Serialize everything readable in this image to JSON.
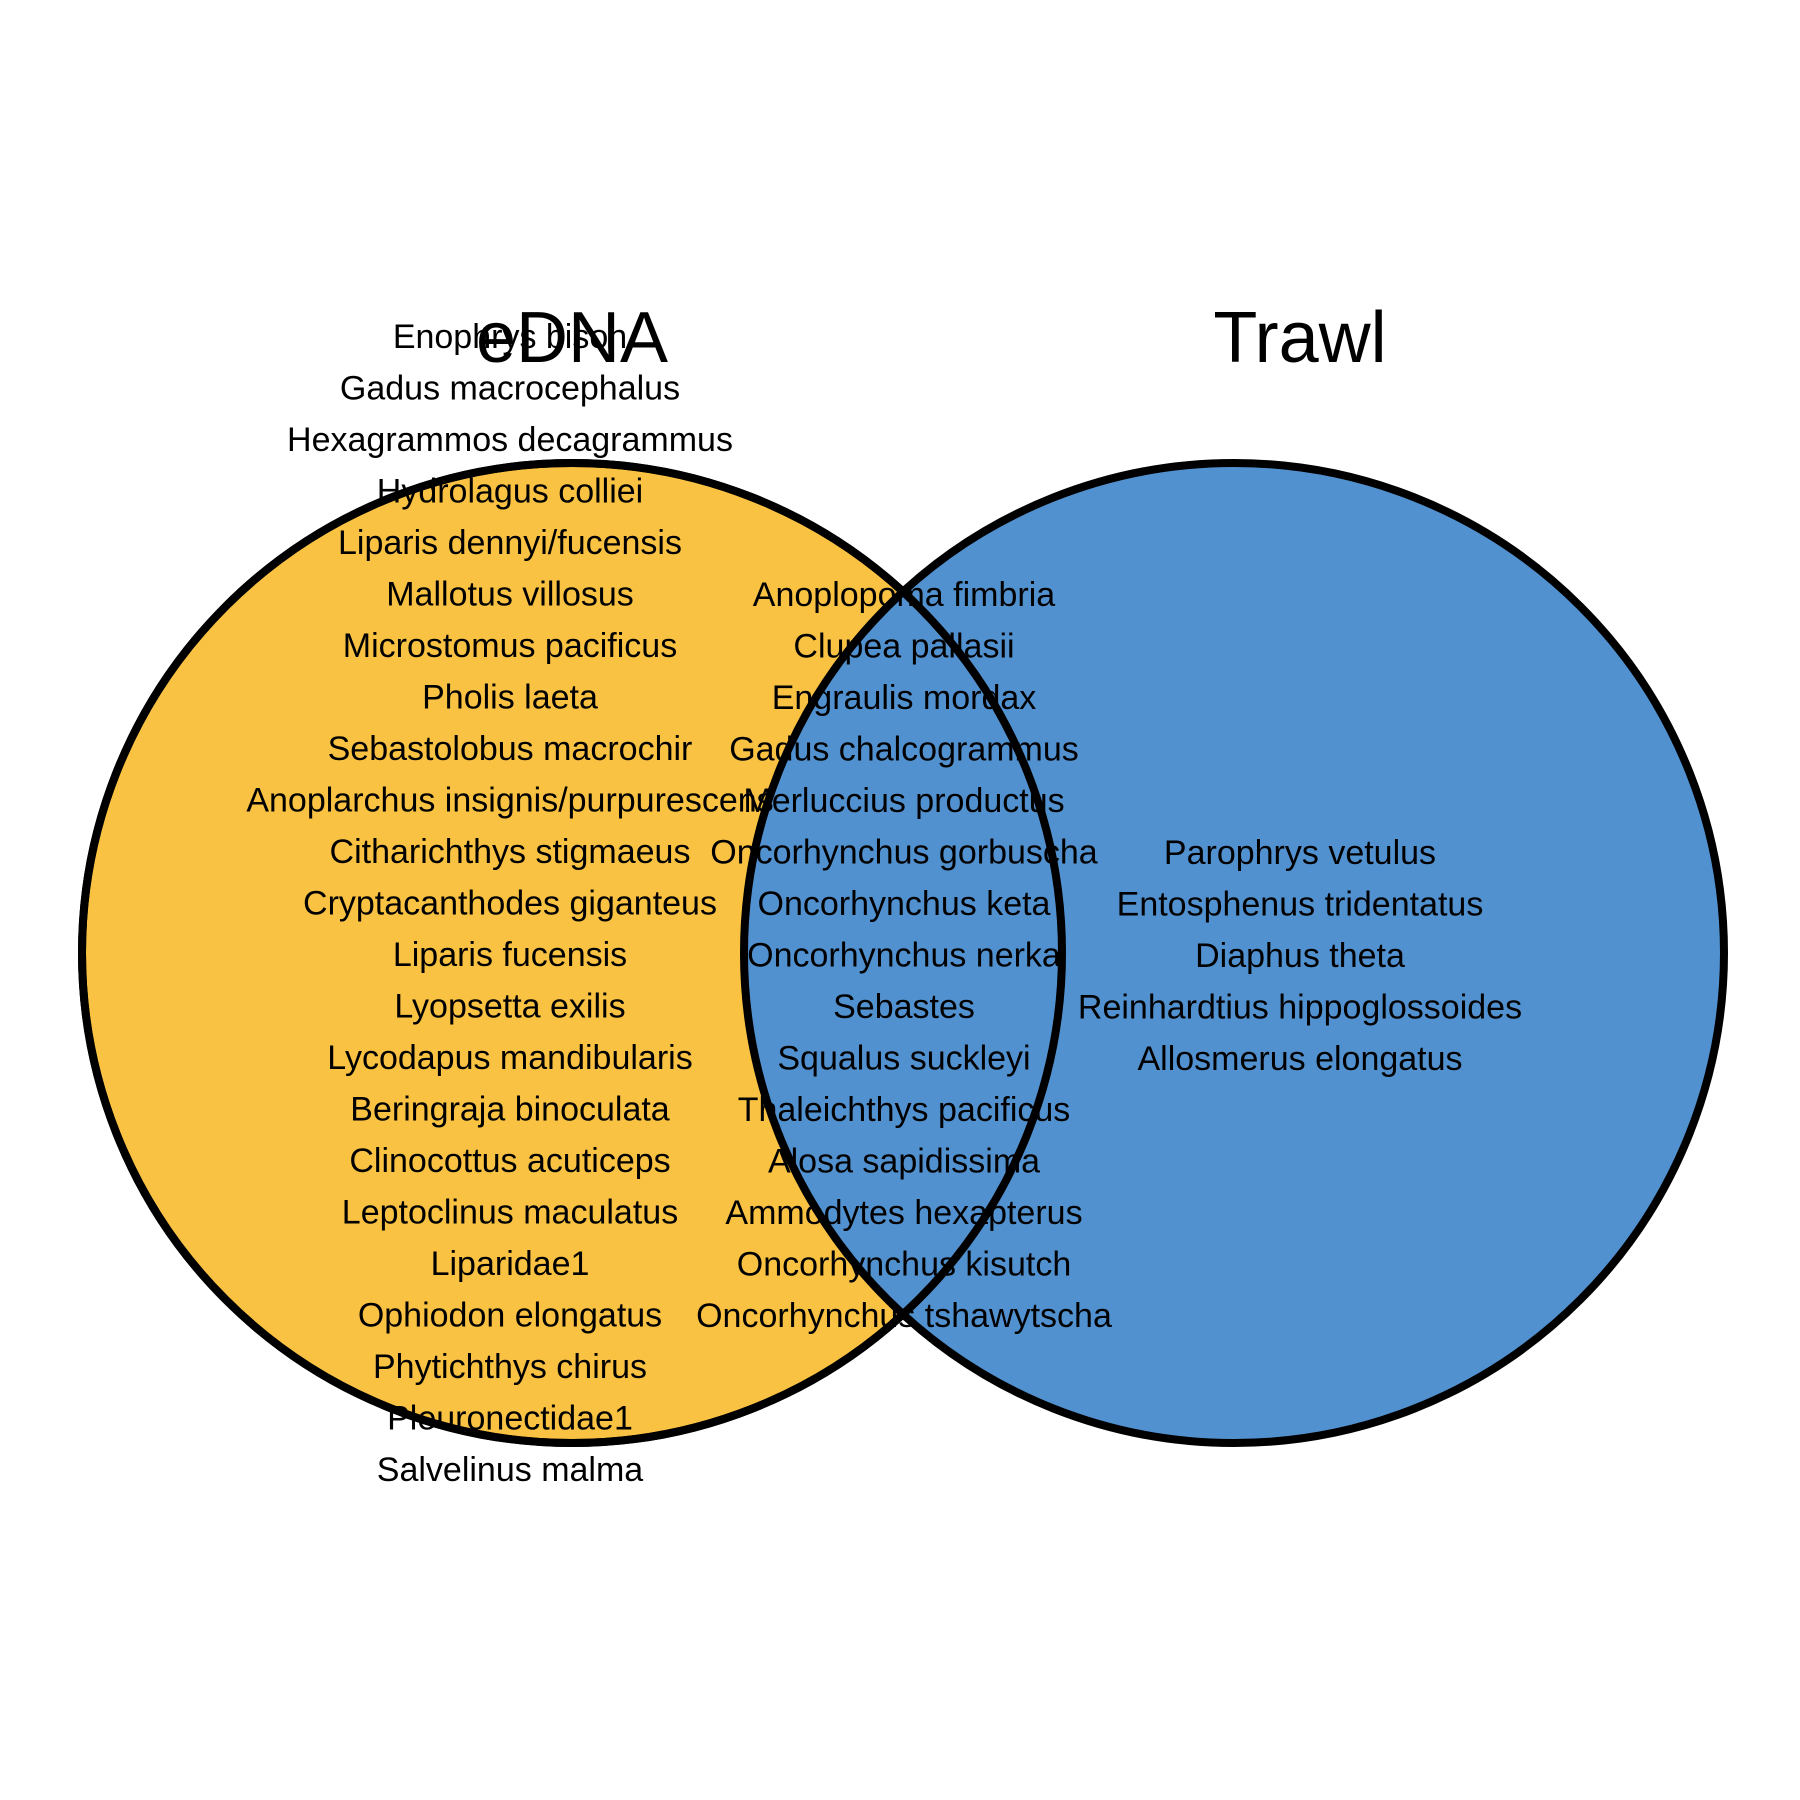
{
  "sets": {
    "left": {
      "title": "eDNA",
      "color": "#F9C242",
      "species": [
        "Enophrys bison",
        "Gadus macrocephalus",
        "Hexagrammos decagrammus",
        "Hydrolagus colliei",
        "Liparis dennyi/fucensis",
        "Mallotus villosus",
        "Microstomus pacificus",
        "Pholis laeta",
        "Sebastolobus macrochir",
        "Anoplarchus insignis/purpurescens",
        "Citharichthys stigmaeus",
        "Cryptacanthodes giganteus",
        "Liparis fucensis",
        "Lyopsetta exilis",
        "Lycodapus mandibularis",
        "Beringraja binoculata",
        "Clinocottus acuticeps",
        "Leptoclinus maculatus",
        "Liparidae1",
        "Ophiodon elongatus",
        "Phytichthys chirus",
        "Pleuronectidae1",
        "Salvelinus malma"
      ]
    },
    "right": {
      "title": "Trawl",
      "color": "#5291CF",
      "species": [
        "Parophrys vetulus",
        "Entosphenus tridentatus",
        "Diaphus theta",
        "Reinhardtius hippoglossoides",
        "Allosmerus elongatus"
      ]
    },
    "overlap": {
      "species": [
        "Anoplopoma fimbria",
        "Clupea pallasii",
        "Engraulis mordax",
        "Gadus chalcogrammus",
        "Merluccius productus",
        "Oncorhynchus gorbuscha",
        "Oncorhynchus keta",
        "Oncorhynchus nerka",
        "Sebastes",
        "Squalus suckleyi",
        "Thaleichthys pacificus",
        "Alosa sapidissima",
        "Ammodytes hexapterus",
        "Oncorhynchus kisutch",
        "Oncorhynchus tshawytscha"
      ]
    }
  }
}
